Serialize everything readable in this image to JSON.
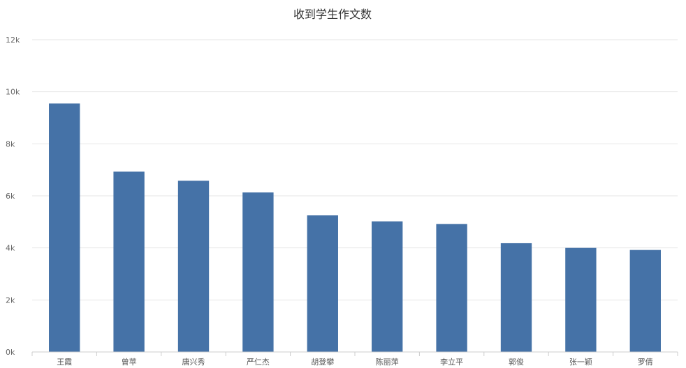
{
  "chart_data": {
    "type": "bar",
    "title": "收到学生作文数",
    "xlabel": "",
    "ylabel": "",
    "categories": [
      "王霞",
      "曾苹",
      "唐兴秀",
      "严仁杰",
      "胡登攀",
      "陈丽萍",
      "李立平",
      "郭俊",
      "张一颖",
      "罗倩"
    ],
    "values": [
      9550,
      6930,
      6580,
      6130,
      5250,
      5020,
      4920,
      4180,
      4000,
      3920
    ],
    "ylim": [
      0,
      12000
    ],
    "yticks": [
      0,
      2000,
      4000,
      6000,
      8000,
      10000,
      12000
    ],
    "ytick_labels": [
      "0k",
      "2k",
      "4k",
      "6k",
      "8k",
      "10k",
      "12k"
    ],
    "grid": true,
    "bar_color": "#4572a7"
  }
}
